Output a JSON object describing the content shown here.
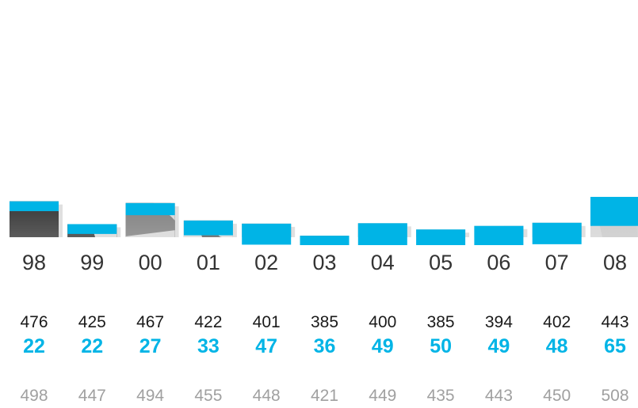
{
  "chart_data": {
    "type": "bar",
    "categories": [
      "98",
      "99",
      "00",
      "01",
      "02",
      "03",
      "04",
      "05",
      "06",
      "07",
      "08"
    ],
    "series": [
      {
        "values": [
          476,
          425,
          467,
          422,
          401,
          385,
          400,
          385,
          394,
          402,
          443
        ]
      },
      {
        "values": [
          22,
          22,
          27,
          33,
          47,
          36,
          49,
          50,
          49,
          48,
          65
        ]
      },
      {
        "values": [
          498,
          447,
          494,
          455,
          448,
          421,
          449,
          435,
          443,
          450,
          508
        ]
      }
    ],
    "title": "",
    "xlabel": "",
    "ylabel": "",
    "ylim": [
      0,
      520
    ],
    "grid": false,
    "legend": "none"
  },
  "colors": {
    "accent": "#00b4e6",
    "total": "#a0a0a0",
    "text": "#333333",
    "photo_dark": "#1a1a1a",
    "photo_mid": "#6e6e6e",
    "photo_light": "#c4c4c4"
  },
  "background": {
    "icon": "handshake-photo-icon"
  }
}
